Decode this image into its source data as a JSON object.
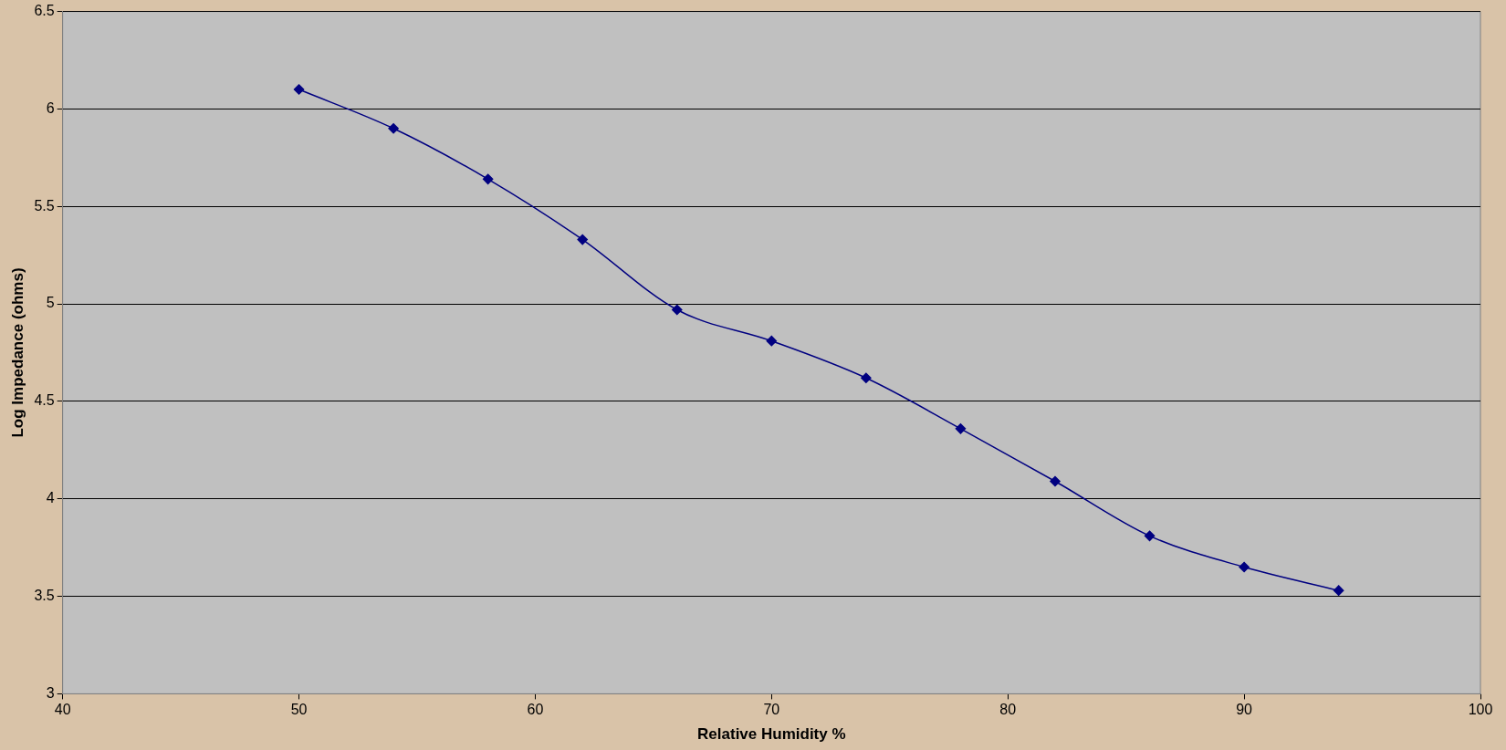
{
  "chart_data": {
    "type": "line",
    "xlabel": "Relative Humidity %",
    "ylabel": "Log Impedance (ohms)",
    "x": [
      50,
      54,
      58,
      62,
      66,
      70,
      74,
      78,
      82,
      86,
      90,
      94
    ],
    "series": [
      {
        "color": "#000080",
        "values": [
          6.1,
          5.9,
          5.64,
          5.33,
          4.97,
          4.81,
          4.62,
          4.36,
          4.09,
          3.81,
          3.65,
          3.53
        ]
      }
    ],
    "xlim": [
      40,
      100
    ],
    "xticks": [
      40,
      50,
      60,
      70,
      80,
      90,
      100
    ],
    "ylim": [
      3,
      6.5
    ],
    "yticks": [
      3,
      3.5,
      4,
      4.5,
      5,
      5.5,
      6,
      6.5
    ],
    "grid": "y",
    "legend": false,
    "marker": "diamond",
    "line_style": "solid"
  }
}
